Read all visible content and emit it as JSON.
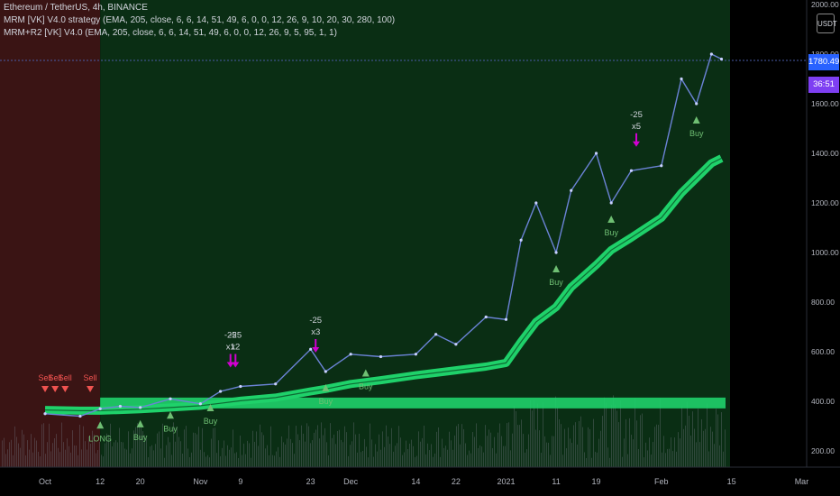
{
  "legend": {
    "symbol_line": "Ethereum / TetherUS, 4h, BINANCE",
    "indicator1": "MRM [VK] V4.0 strategy (EMA, 205, close, 6, 6, 14, 51, 49, 6, 0, 0, 12, 26, 9, 10, 20, 30, 280, 100)",
    "indicator2": "MRM+R2 [VK] V4.0 (EMA, 205, close, 6, 6, 14, 51, 49, 6, 0, 0, 12, 26, 9, 5, 95, 1, 1)"
  },
  "price_axis": {
    "currency_label": "USDT",
    "last_price": "1780.49",
    "countdown": "36:51",
    "ticks": [
      "2000.00",
      "1800.00",
      "1600.00",
      "1400.00",
      "1200.00",
      "1000.00",
      "800.00",
      "600.00",
      "400.00",
      "200.00"
    ]
  },
  "time_axis": {
    "ticks": [
      "Oct",
      "12",
      "20",
      "Nov",
      "9",
      "23",
      "Dec",
      "14",
      "22",
      "2021",
      "11",
      "19",
      "Feb",
      "15",
      "Mar"
    ]
  },
  "colors": {
    "background": "#000000",
    "bull_zone": "#0a2e14",
    "bear_zone": "#3a1414",
    "price_line": "#6b83d6",
    "ema_band": "#1fd16a",
    "buy_marker": "#6fbf73",
    "sell_marker": "#ef5350",
    "short_marker": "#d100d1",
    "last_price_bg": "#2962ff",
    "countdown_bg": "#7e3ff2"
  },
  "chart_data": {
    "type": "line",
    "title": "Ethereum / TetherUS, 4h, BINANCE",
    "ylabel": "USDT",
    "ylim": [
      200,
      2000
    ],
    "x": [
      "2020-10-01",
      "2020-10-08",
      "2020-10-12",
      "2020-10-16",
      "2020-10-20",
      "2020-10-26",
      "2020-11-01",
      "2020-11-05",
      "2020-11-09",
      "2020-11-16",
      "2020-11-23",
      "2020-11-26",
      "2020-12-01",
      "2020-12-07",
      "2020-12-14",
      "2020-12-18",
      "2020-12-22",
      "2020-12-28",
      "2021-01-01",
      "2021-01-04",
      "2021-01-07",
      "2021-01-11",
      "2021-01-14",
      "2021-01-19",
      "2021-01-22",
      "2021-01-26",
      "2021-02-01",
      "2021-02-05",
      "2021-02-08",
      "2021-02-11",
      "2021-02-13"
    ],
    "series": [
      {
        "name": "ETH/USDT close",
        "values": [
          350,
          340,
          370,
          380,
          375,
          410,
          390,
          440,
          460,
          470,
          610,
          520,
          590,
          580,
          590,
          670,
          630,
          740,
          730,
          1050,
          1200,
          1000,
          1250,
          1400,
          1200,
          1330,
          1350,
          1700,
          1600,
          1800,
          1780
        ]
      },
      {
        "name": "EMA 205",
        "values": [
          365,
          362,
          362,
          365,
          368,
          375,
          382,
          392,
          402,
          415,
          440,
          450,
          470,
          485,
          505,
          515,
          525,
          540,
          555,
          640,
          720,
          780,
          860,
          950,
          1010,
          1060,
          1140,
          1240,
          1300,
          1360,
          1380
        ]
      }
    ],
    "annotations": [
      {
        "text": "Sell",
        "x": "2020-10-01"
      },
      {
        "text": "Sell",
        "x": "2020-10-03"
      },
      {
        "text": "Sell",
        "x": "2020-10-05"
      },
      {
        "text": "Sell",
        "x": "2020-10-10"
      },
      {
        "text": "LONG",
        "x": "2020-10-12"
      },
      {
        "text": "Buy",
        "x": "2020-10-20"
      },
      {
        "text": "Buy",
        "x": "2020-10-26"
      },
      {
        "text": "Buy",
        "x": "2020-11-03"
      },
      {
        "text": "-25 x2",
        "x": "2020-11-08"
      },
      {
        "text": "-25 x1",
        "x": "2020-11-07"
      },
      {
        "text": "-25 x3",
        "x": "2020-11-24"
      },
      {
        "text": "Buy",
        "x": "2020-11-26"
      },
      {
        "text": "Buy",
        "x": "2020-12-04"
      },
      {
        "text": "Buy",
        "x": "2021-01-11"
      },
      {
        "text": "Buy",
        "x": "2021-01-22"
      },
      {
        "text": "-25 x5",
        "x": "2021-01-27"
      },
      {
        "text": "Buy",
        "x": "2021-02-08"
      }
    ],
    "last_price": 1780.49,
    "grid": false,
    "legend": "top-left"
  }
}
